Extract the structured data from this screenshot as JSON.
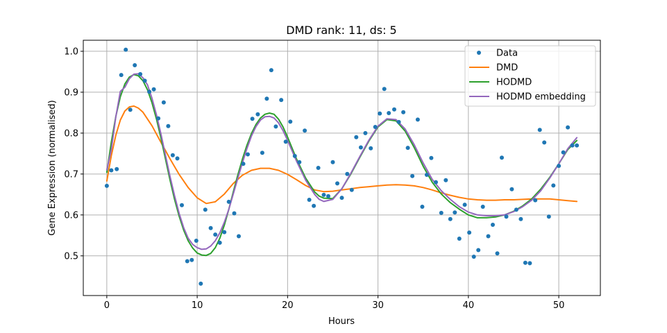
{
  "chart_data": {
    "type": "line",
    "title": "DMD rank: 11, ds: 5",
    "xlabel": "Hours",
    "ylabel": "Gene Expression (normalised)",
    "xlim": [
      -2.6,
      54.6
    ],
    "ylim": [
      0.403,
      1.027
    ],
    "xticks": [
      0,
      10,
      20,
      30,
      40,
      50
    ],
    "xtick_labels": [
      "0",
      "10",
      "20",
      "30",
      "40",
      "50"
    ],
    "yticks": [
      0.5,
      0.6,
      0.7,
      0.8,
      0.9,
      1.0
    ],
    "ytick_labels": [
      "0.5",
      "0.6",
      "0.7",
      "0.8",
      "0.9",
      "1.0"
    ],
    "grid": true,
    "legend_position": "upper right",
    "scatter": {
      "name": "Data",
      "color": "#1f77b4",
      "x": [
        0,
        0.5,
        1.1,
        1.6,
        2.1,
        2.6,
        3.1,
        3.7,
        4.2,
        4.7,
        5.2,
        5.7,
        6.3,
        6.8,
        7.3,
        7.8,
        8.3,
        8.9,
        9.4,
        9.9,
        10.4,
        10.9,
        11.5,
        12,
        12.5,
        13,
        13.5,
        14.1,
        14.6,
        15.1,
        15.6,
        16.1,
        16.7,
        17.2,
        17.7,
        18.2,
        18.7,
        19.3,
        19.8,
        20.3,
        20.8,
        21.3,
        21.9,
        22.4,
        22.9,
        23.4,
        24,
        24.5,
        25,
        25.5,
        26,
        26.6,
        27.1,
        27.6,
        28.1,
        28.6,
        29.2,
        29.7,
        30.2,
        30.7,
        31.2,
        31.8,
        32.3,
        32.8,
        33.3,
        33.8,
        34.4,
        34.9,
        35.4,
        35.9,
        36.4,
        37,
        37.5,
        38,
        38.5,
        39,
        39.6,
        40.1,
        40.6,
        41.1,
        41.6,
        42.2,
        42.7,
        43.2,
        43.7,
        44.2,
        44.8,
        45.3,
        45.8,
        46.3,
        46.8,
        47.4,
        47.9,
        48.4,
        48.9,
        49.4,
        50,
        50.5,
        51,
        51.5,
        52
      ],
      "y": [
        0.671,
        0.709,
        0.712,
        0.942,
        1.004,
        0.857,
        0.966,
        0.944,
        0.928,
        0.901,
        0.907,
        0.836,
        0.875,
        0.817,
        0.746,
        0.738,
        0.624,
        0.487,
        0.49,
        0.537,
        0.432,
        0.613,
        0.568,
        0.552,
        0.532,
        0.558,
        0.632,
        0.604,
        0.548,
        0.725,
        0.748,
        0.835,
        0.846,
        0.752,
        0.884,
        0.954,
        0.816,
        0.881,
        0.779,
        0.828,
        0.744,
        0.729,
        0.806,
        0.637,
        0.622,
        0.715,
        0.649,
        0.646,
        0.729,
        0.677,
        0.642,
        0.7,
        0.661,
        0.79,
        0.765,
        0.8,
        0.763,
        0.815,
        0.848,
        0.908,
        0.849,
        0.858,
        0.827,
        0.851,
        0.764,
        0.695,
        0.833,
        0.62,
        0.698,
        0.739,
        0.68,
        0.605,
        0.685,
        0.59,
        0.606,
        0.542,
        0.625,
        0.557,
        0.498,
        0.514,
        0.62,
        0.548,
        0.576,
        0.506,
        0.74,
        0.596,
        0.663,
        0.613,
        0.59,
        0.483,
        0.482,
        0.636,
        0.808,
        0.777,
        0.596,
        0.672,
        0.72,
        0.753,
        0.814,
        0.77,
        0.77
      ]
    },
    "series": [
      {
        "name": "DMD",
        "color": "#ff7f0e",
        "x": [
          0,
          0.5,
          1,
          1.5,
          2,
          2.5,
          3,
          3.5,
          4,
          5,
          6,
          7,
          8,
          9,
          10,
          11,
          12,
          13,
          14,
          15,
          16,
          17,
          18,
          19,
          20,
          21,
          22,
          23,
          24,
          25,
          26,
          27,
          28,
          29,
          30,
          31,
          32,
          33,
          34,
          35,
          36,
          37,
          38,
          39,
          40,
          41,
          42,
          43,
          44,
          45,
          46,
          47,
          48,
          49,
          50,
          51,
          52
        ],
        "y": [
          0.683,
          0.745,
          0.795,
          0.832,
          0.854,
          0.864,
          0.866,
          0.861,
          0.851,
          0.818,
          0.777,
          0.737,
          0.699,
          0.667,
          0.642,
          0.628,
          0.632,
          0.651,
          0.677,
          0.697,
          0.709,
          0.714,
          0.714,
          0.709,
          0.699,
          0.686,
          0.672,
          0.661,
          0.657,
          0.658,
          0.661,
          0.664,
          0.667,
          0.669,
          0.671,
          0.673,
          0.674,
          0.673,
          0.671,
          0.667,
          0.661,
          0.654,
          0.648,
          0.643,
          0.639,
          0.637,
          0.636,
          0.636,
          0.637,
          0.637,
          0.638,
          0.639,
          0.639,
          0.639,
          0.637,
          0.635,
          0.633
        ]
      },
      {
        "name": "HODMD",
        "color": "#2ca02c",
        "x": [
          0,
          0.5,
          1,
          1.5,
          2,
          2.5,
          3,
          3.5,
          4,
          4.5,
          5,
          5.5,
          6,
          6.5,
          7,
          7.5,
          8,
          8.5,
          9,
          9.5,
          10,
          10.5,
          11,
          11.5,
          12,
          12.5,
          13,
          13.5,
          14,
          14.5,
          15,
          15.5,
          16,
          16.5,
          17,
          17.5,
          18,
          18.5,
          19,
          19.5,
          20,
          21,
          22,
          23,
          23.5,
          24,
          25,
          26,
          27,
          28,
          29,
          30,
          31,
          32,
          33,
          34,
          35,
          36,
          37,
          38,
          39,
          40,
          41,
          42,
          43,
          44,
          45,
          46,
          47,
          48,
          49,
          50,
          51,
          52
        ],
        "y": [
          0.704,
          0.778,
          0.841,
          0.889,
          0.92,
          0.937,
          0.943,
          0.94,
          0.928,
          0.906,
          0.874,
          0.834,
          0.787,
          0.736,
          0.685,
          0.638,
          0.597,
          0.563,
          0.537,
          0.519,
          0.507,
          0.502,
          0.501,
          0.506,
          0.52,
          0.543,
          0.575,
          0.614,
          0.657,
          0.698,
          0.736,
          0.77,
          0.799,
          0.821,
          0.837,
          0.846,
          0.849,
          0.846,
          0.834,
          0.815,
          0.79,
          0.736,
          0.69,
          0.656,
          0.646,
          0.641,
          0.64,
          0.664,
          0.7,
          0.741,
          0.781,
          0.815,
          0.833,
          0.83,
          0.805,
          0.765,
          0.719,
          0.68,
          0.651,
          0.63,
          0.614,
          0.6,
          0.593,
          0.593,
          0.595,
          0.6,
          0.609,
          0.622,
          0.639,
          0.663,
          0.692,
          0.725,
          0.76,
          0.782
        ]
      },
      {
        "name": "HODMD embedding",
        "color": "#9467bd",
        "x": [
          0,
          0.5,
          1,
          1.5,
          2,
          2.5,
          3,
          3.5,
          4,
          4.5,
          5,
          5.5,
          6,
          6.5,
          7,
          7.5,
          8,
          8.5,
          9,
          9.5,
          10,
          10.5,
          11,
          11.5,
          12,
          12.5,
          13,
          13.5,
          14,
          14.5,
          15,
          15.5,
          16,
          16.5,
          17,
          17.5,
          18,
          18.5,
          19,
          19.5,
          20,
          21,
          22,
          23,
          23.5,
          24,
          25,
          26,
          27,
          28,
          29,
          30,
          31,
          32,
          33,
          34,
          35,
          36,
          37,
          38,
          39,
          40,
          41,
          42,
          43,
          44,
          45,
          46,
          47,
          48,
          49,
          50,
          51,
          52
        ],
        "y": [
          0.71,
          0.76,
          0.84,
          0.902,
          0.912,
          0.933,
          0.944,
          0.945,
          0.935,
          0.918,
          0.885,
          0.844,
          0.797,
          0.745,
          0.694,
          0.647,
          0.604,
          0.569,
          0.543,
          0.528,
          0.52,
          0.516,
          0.517,
          0.524,
          0.537,
          0.556,
          0.582,
          0.614,
          0.652,
          0.69,
          0.727,
          0.762,
          0.793,
          0.816,
          0.832,
          0.84,
          0.841,
          0.837,
          0.825,
          0.806,
          0.782,
          0.731,
          0.685,
          0.65,
          0.638,
          0.633,
          0.638,
          0.664,
          0.702,
          0.743,
          0.783,
          0.817,
          0.835,
          0.833,
          0.81,
          0.772,
          0.727,
          0.687,
          0.659,
          0.638,
          0.62,
          0.607,
          0.6,
          0.598,
          0.598,
          0.6,
          0.608,
          0.62,
          0.636,
          0.659,
          0.69,
          0.725,
          0.762,
          0.789
        ]
      }
    ]
  }
}
